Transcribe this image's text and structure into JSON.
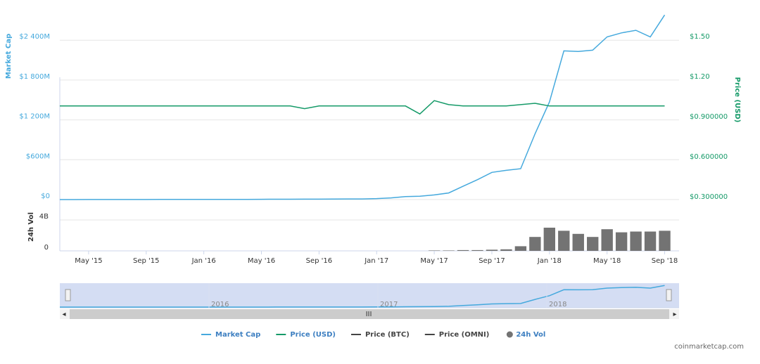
{
  "chart_data": {
    "type": "line",
    "x": [
      "2015-03",
      "2015-04",
      "2015-05",
      "2015-06",
      "2015-07",
      "2015-08",
      "2015-09",
      "2015-10",
      "2015-11",
      "2015-12",
      "2016-01",
      "2016-02",
      "2016-03",
      "2016-04",
      "2016-05",
      "2016-06",
      "2016-07",
      "2016-08",
      "2016-09",
      "2016-10",
      "2016-11",
      "2016-12",
      "2017-01",
      "2017-02",
      "2017-03",
      "2017-04",
      "2017-05",
      "2017-06",
      "2017-07",
      "2017-08",
      "2017-09",
      "2017-10",
      "2017-11",
      "2017-12",
      "2018-01",
      "2018-02",
      "2018-03",
      "2018-04",
      "2018-05",
      "2018-06",
      "2018-07",
      "2018-08",
      "2018-09"
    ],
    "xlim": [
      "2015-03",
      "2018-10"
    ],
    "xticks": [
      {
        "value": "2015-05",
        "label": "May '15"
      },
      {
        "value": "2015-09",
        "label": "Sep '15"
      },
      {
        "value": "2016-01",
        "label": "Jan '16"
      },
      {
        "value": "2016-05",
        "label": "May '16"
      },
      {
        "value": "2016-09",
        "label": "Sep '16"
      },
      {
        "value": "2017-01",
        "label": "Jan '17"
      },
      {
        "value": "2017-05",
        "label": "May '17"
      },
      {
        "value": "2017-09",
        "label": "Sep '17"
      },
      {
        "value": "2018-01",
        "label": "Jan '18"
      },
      {
        "value": "2018-05",
        "label": "May '18"
      },
      {
        "value": "2018-09",
        "label": "Sep '18"
      }
    ],
    "y_label": "Market Cap",
    "ylim": [
      0,
      2900000000
    ],
    "yticks": [
      {
        "value": 0,
        "label": "$0"
      },
      {
        "value": 600000000,
        "label": "$600M"
      },
      {
        "value": 1200000000,
        "label": "$1 200M"
      },
      {
        "value": 1800000000,
        "label": "$1 800M"
      },
      {
        "value": 2400000000,
        "label": "$2 400M"
      }
    ],
    "y2_label": "Price (USD)",
    "y2lim": [
      0.28,
      1.72
    ],
    "y2ticks": [
      {
        "value": 0.3,
        "label": "$0.300000"
      },
      {
        "value": 0.6,
        "label": "$0.600000"
      },
      {
        "value": 0.9,
        "label": "$0.900000"
      },
      {
        "value": 1.2,
        "label": "$1.20"
      },
      {
        "value": 1.5,
        "label": "$1.50"
      }
    ],
    "y3_label": "24h Vol",
    "y3lim": [
      0,
      6000000000
    ],
    "y3ticks": [
      0,
      {
        "value": 4000000000,
        "label": "4B"
      }
    ],
    "grid": true,
    "series": [
      {
        "name": "Market Cap",
        "color": "#45a9dd",
        "axis": "y",
        "values": [
          300000,
          500000,
          700000,
          900000,
          900000,
          1000000,
          1500000,
          2000000,
          2500000,
          2600000,
          3000000,
          3000000,
          3000000,
          3000000,
          4000000,
          5000000,
          5000000,
          6000000,
          6000000,
          7000000,
          9000000,
          10000000,
          15000000,
          25000000,
          45000000,
          50000000,
          70000000,
          100000000,
          200000000,
          300000000,
          410000000,
          440000000,
          465000000,
          990000000,
          1470000000,
          2240000000,
          2230000000,
          2250000000,
          2450000000,
          2510000000,
          2550000000,
          2450000000,
          2780000000
        ]
      },
      {
        "name": "Price (USD)",
        "color": "#159a68",
        "axis": "y2",
        "values": [
          0.98,
          0.98,
          0.98,
          0.98,
          0.98,
          0.98,
          0.98,
          0.98,
          0.98,
          0.98,
          0.98,
          0.98,
          0.98,
          0.98,
          0.98,
          0.98,
          0.98,
          0.96,
          0.98,
          0.98,
          0.98,
          0.98,
          0.98,
          0.98,
          0.98,
          0.92,
          1.02,
          0.99,
          0.98,
          0.98,
          0.98,
          0.98,
          0.99,
          1.0,
          0.98,
          0.98,
          0.98,
          0.98,
          0.98,
          0.98,
          0.98,
          0.98,
          0.98
        ]
      },
      {
        "name": "Price (BTC)",
        "color": "#444444",
        "hidden": true
      },
      {
        "name": "Price (OMNI)",
        "color": "#444444",
        "hidden": true
      },
      {
        "name": "24h Vol",
        "color": "#737373",
        "axis": "y3",
        "type": "bar",
        "values": [
          0,
          0,
          0,
          0,
          0,
          0,
          0,
          0,
          0,
          0,
          0,
          0,
          0,
          0,
          0,
          0,
          0,
          0,
          0,
          0,
          0,
          0,
          0,
          0,
          0,
          0,
          50000000,
          50000000,
          100000000,
          100000000,
          150000000,
          200000000,
          600000000,
          1800000000,
          3000000000,
          2600000000,
          2200000000,
          1800000000,
          2800000000,
          2400000000,
          2500000000,
          2500000000,
          2600000000
        ]
      }
    ],
    "navigator": {
      "labels": [
        "2016",
        "2017",
        "2018"
      ]
    },
    "credit": "coinmarketcap.com"
  }
}
